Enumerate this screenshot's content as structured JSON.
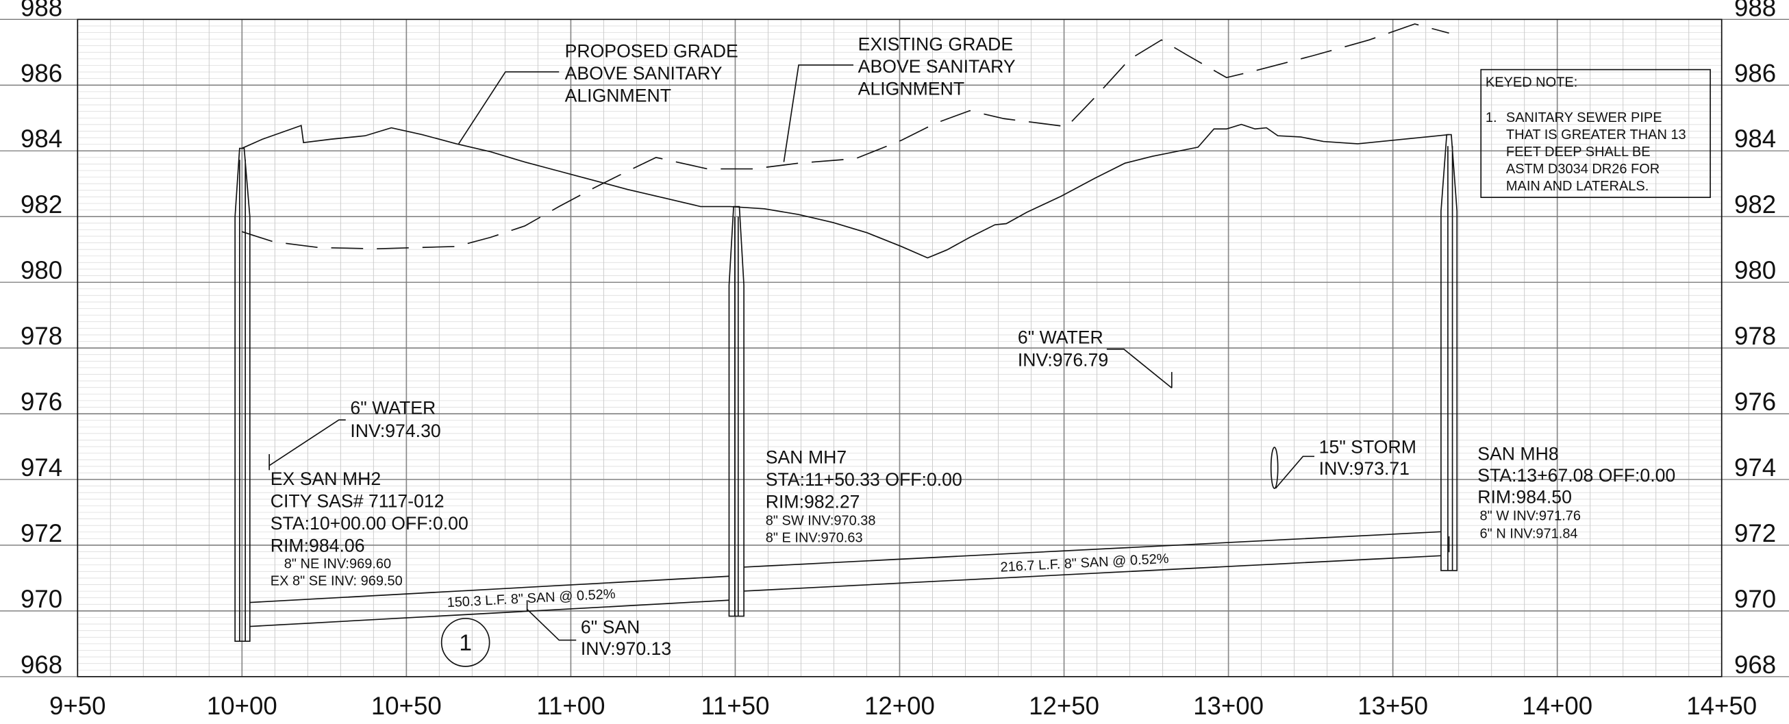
{
  "elevations": [
    "988",
    "986",
    "984",
    "982",
    "980",
    "978",
    "976",
    "974",
    "972",
    "970",
    "968"
  ],
  "stations": [
    "9+50",
    "10+00",
    "10+50",
    "11+00",
    "11+50",
    "12+00",
    "12+50",
    "13+00",
    "13+50",
    "14+00",
    "14+50"
  ],
  "proposed_grade_label": [
    "PROPOSED GRADE",
    "ABOVE SANITARY",
    "ALIGNMENT"
  ],
  "existing_grade_label": [
    "EXISTING GRADE",
    "ABOVE SANITARY",
    "ALIGNMENT"
  ],
  "keyed_note": {
    "title": "KEYED NOTE:",
    "number": "1.",
    "lines": [
      "SANITARY SEWER PIPE",
      "THAT IS GREATER THAN 13",
      "FEET DEEP SHALL BE",
      "ASTM D3034 DR26 FOR",
      "MAIN AND LATERALS."
    ]
  },
  "water_1": [
    "6\" WATER",
    "INV:974.30"
  ],
  "water_2": [
    "6\" WATER",
    "INV:976.79"
  ],
  "storm": [
    "15\" STORM",
    "INV:973.71"
  ],
  "san_6": [
    "6\" SAN",
    "INV:970.13"
  ],
  "mh2": {
    "lines": [
      "EX SAN MH2",
      "CITY SAS# 7117-012",
      "STA:10+00.00 OFF:0.00",
      "RIM:984.06"
    ],
    "inverts": [
      "8\" NE INV:969.60",
      "EX 8\" SE INV: 969.50"
    ]
  },
  "mh7": {
    "lines": [
      "SAN MH7",
      "STA:11+50.33 OFF:0.00",
      "RIM:982.27"
    ],
    "inverts": [
      "8\" SW INV:970.38",
      "8\" E INV:970.63"
    ]
  },
  "mh8": {
    "lines": [
      "SAN MH8",
      "STA:13+67.08 OFF:0.00",
      "RIM:984.50"
    ],
    "inverts": [
      "8\" W INV:971.76",
      "6\" N INV:971.84"
    ]
  },
  "pipe_1": "150.3 L.F. 8\"  SAN @ 0.52%",
  "pipe_2": "216.7 L.F. 8\"  SAN @ 0.52%",
  "keyed_marker": "1"
}
